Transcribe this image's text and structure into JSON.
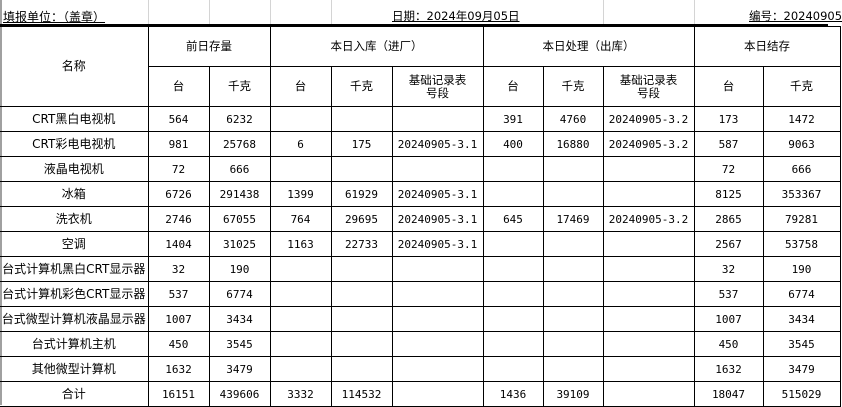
{
  "title_row": {
    "unit_label": "填报单位：（盖章）",
    "date_label": "日期：2024年09月05日",
    "number_label": "编号：20240905"
  },
  "header": {
    "name": "名称",
    "groups": [
      "前日存量",
      "本日入库（进厂）",
      "本日处理（出库）",
      "本日结存"
    ],
    "sub": [
      "台",
      "千克",
      "台",
      "千克",
      "基础记录表号段",
      "台",
      "千克",
      "基础记录表号段",
      "台",
      "千克"
    ]
  },
  "rows": [
    [
      "CRT黑白电视机",
      "564",
      "6232",
      "",
      "",
      "",
      "391",
      "4760",
      "20240905-3.2",
      "173",
      "1472"
    ],
    [
      "CRT彩电电视机",
      "981",
      "25768",
      "6",
      "175",
      "20240905-3.1",
      "400",
      "16880",
      "20240905-3.2",
      "587",
      "9063"
    ],
    [
      "液晶电视机",
      "72",
      "666",
      "",
      "",
      "",
      "",
      "",
      "",
      "72",
      "666"
    ],
    [
      "冰箱",
      "6726",
      "291438",
      "1399",
      "61929",
      "20240905-3.1",
      "",
      "",
      "",
      "8125",
      "353367"
    ],
    [
      "洗衣机",
      "2746",
      "67055",
      "764",
      "29695",
      "20240905-3.1",
      "645",
      "17469",
      "20240905-3.2",
      "2865",
      "79281"
    ],
    [
      "空调",
      "1404",
      "31025",
      "1163",
      "22733",
      "20240905-3.1",
      "",
      "",
      "",
      "2567",
      "53758"
    ],
    [
      "台式计算机黑白CRT显示器",
      "32",
      "190",
      "",
      "",
      "",
      "",
      "",
      "",
      "32",
      "190"
    ],
    [
      "台式计算机彩色CRT显示器",
      "537",
      "6774",
      "",
      "",
      "",
      "",
      "",
      "",
      "537",
      "6774"
    ],
    [
      "台式微型计算机液晶显示器",
      "1007",
      "3434",
      "",
      "",
      "",
      "",
      "",
      "",
      "1007",
      "3434"
    ],
    [
      "台式计算机主机",
      "450",
      "3545",
      "",
      "",
      "",
      "",
      "",
      "",
      "450",
      "3545"
    ],
    [
      "其他微型计算机",
      "1632",
      "3479",
      "",
      "",
      "",
      "",
      "",
      "",
      "1632",
      "3479"
    ],
    [
      "合计",
      "16151",
      "439606",
      "3332",
      "114532",
      "",
      "1436",
      "39109",
      "",
      "18047",
      "515029"
    ]
  ]
}
